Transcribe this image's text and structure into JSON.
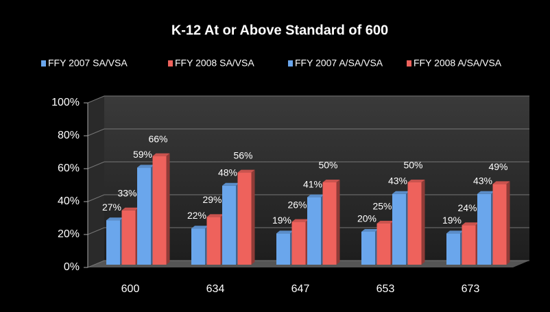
{
  "chart_data": {
    "type": "bar",
    "title": "K-12 At or Above Standard of 600",
    "categories": [
      "600",
      "634",
      "647",
      "653",
      "673"
    ],
    "series": [
      {
        "name": "FFY 2007 SA/VSA",
        "color": "#6aa6ec",
        "values": [
          27,
          22,
          19,
          20,
          19
        ],
        "value_labels": [
          "27%",
          "22%",
          "19%",
          "20%",
          "19%"
        ]
      },
      {
        "name": "FFY 2008 SA/VSA",
        "color": "#ee625c",
        "values": [
          33,
          29,
          26,
          25,
          24
        ],
        "value_labels": [
          "33%",
          "29%",
          "26%",
          "25%",
          "24%"
        ]
      },
      {
        "name": "FFY 2007 A/SA/VSA",
        "color": "#6aa6ec",
        "values": [
          59,
          48,
          41,
          43,
          43
        ],
        "value_labels": [
          "59%",
          "48%",
          "41%",
          "43%",
          "43%"
        ]
      },
      {
        "name": "FFY 2008 A/SA/VSA",
        "color": "#ee625c",
        "values": [
          66,
          56,
          50,
          50,
          49
        ],
        "value_labels": [
          "66%",
          "56%",
          "50%",
          "50%",
          "49%"
        ]
      }
    ],
    "ylim": [
      0,
      100
    ],
    "yticks": [
      {
        "value": 0,
        "label": "0%"
      },
      {
        "value": 20,
        "label": "20%"
      },
      {
        "value": 40,
        "label": "40%"
      },
      {
        "value": 60,
        "label": "60%"
      },
      {
        "value": 80,
        "label": "80%"
      },
      {
        "value": 100,
        "label": "100%"
      }
    ],
    "grid": true,
    "legend": "top"
  }
}
